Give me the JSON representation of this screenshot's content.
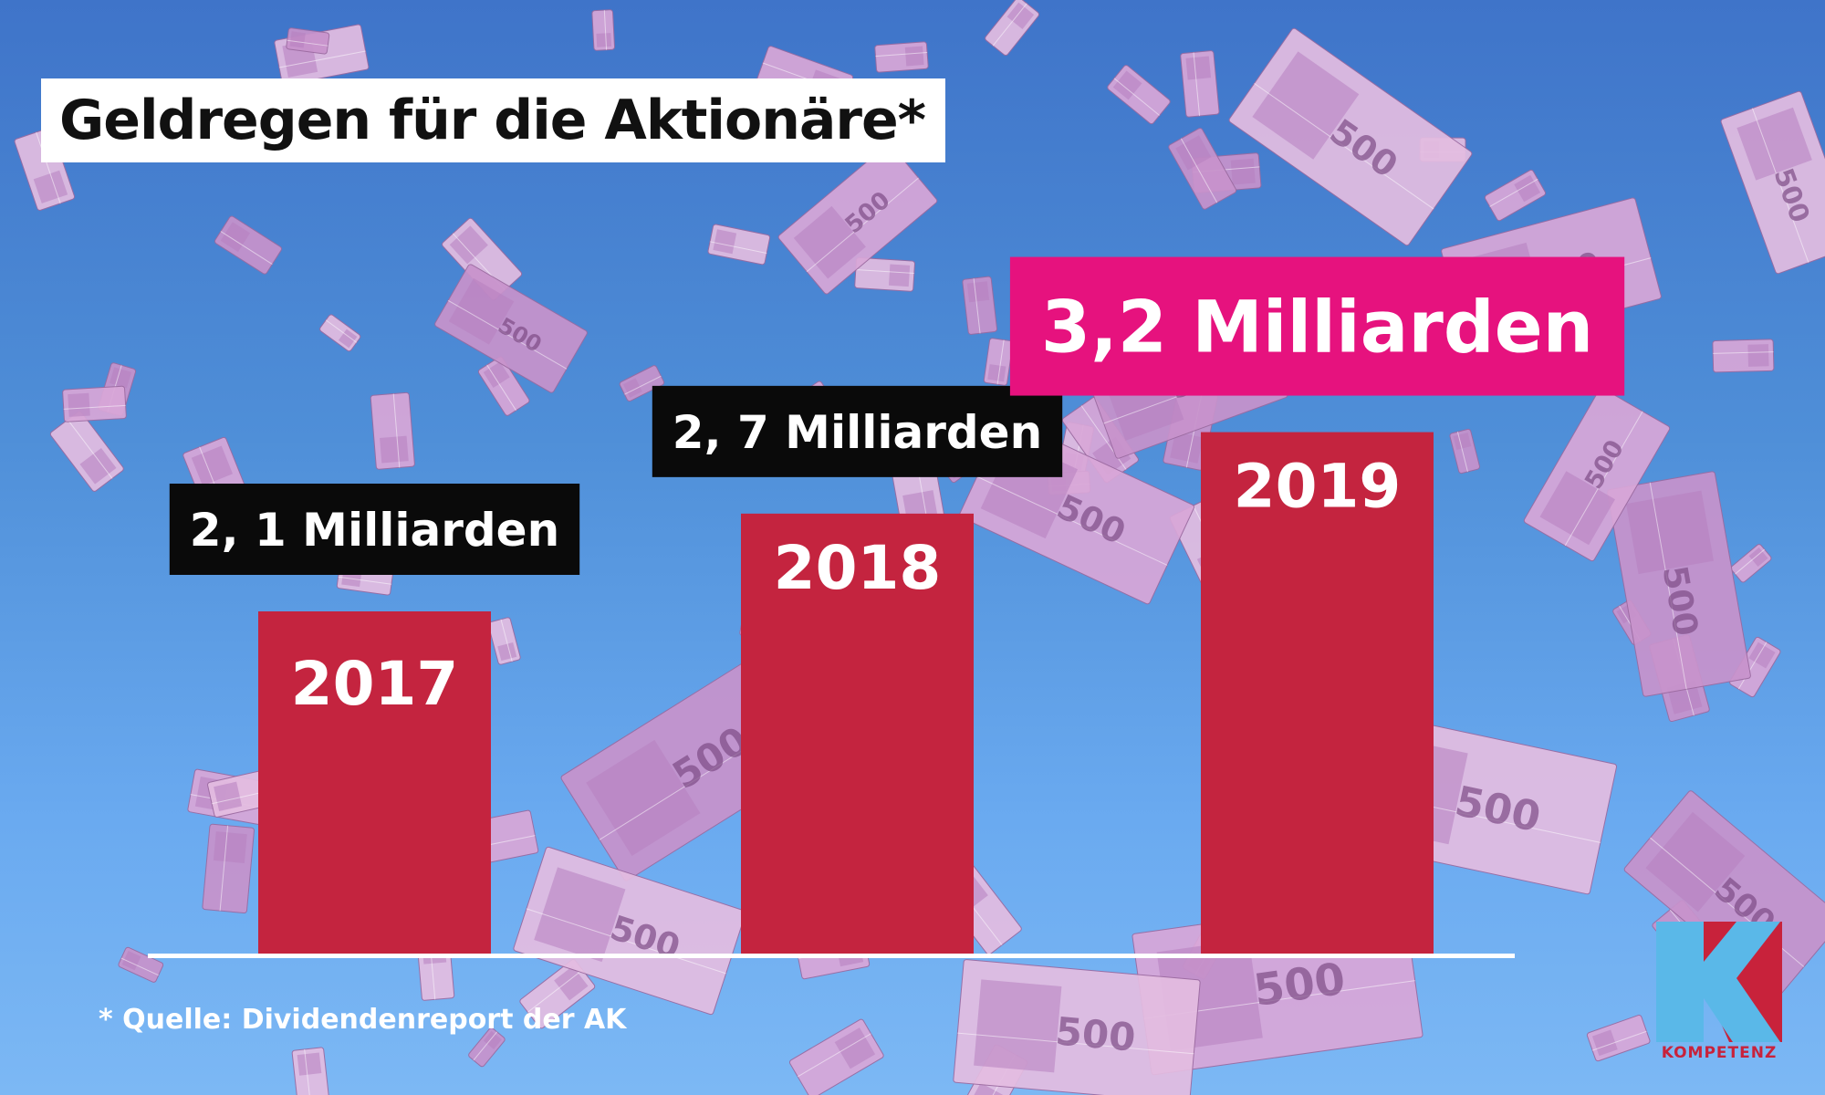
{
  "title": "Geldregen für die Aktionäre*",
  "source_note": "* Quelle: Dividendenreport der AK",
  "logo": {
    "letter": "K",
    "text": "KOMPETENZ"
  },
  "colors": {
    "bar": "#c4243f",
    "label_box": "#0a0a0a",
    "highlight_box": "#e6127e",
    "baseline": "#ffffff",
    "logo_blue": "#5ab8e8",
    "logo_red": "#c8223b"
  },
  "background": {
    "description_icon": "falling-banknotes",
    "note_value": "500"
  },
  "chart_data": {
    "type": "bar",
    "title": "Geldregen für die Aktionäre*",
    "categories": [
      "2017",
      "2018",
      "2019"
    ],
    "values": [
      2.1,
      2.7,
      3.2
    ],
    "value_labels": [
      "2, 1 Milliarden",
      "2, 7 Milliarden",
      "3,2 Milliarden"
    ],
    "highlight_index": 2,
    "xlabel": "",
    "ylabel": "",
    "grid": false
  }
}
